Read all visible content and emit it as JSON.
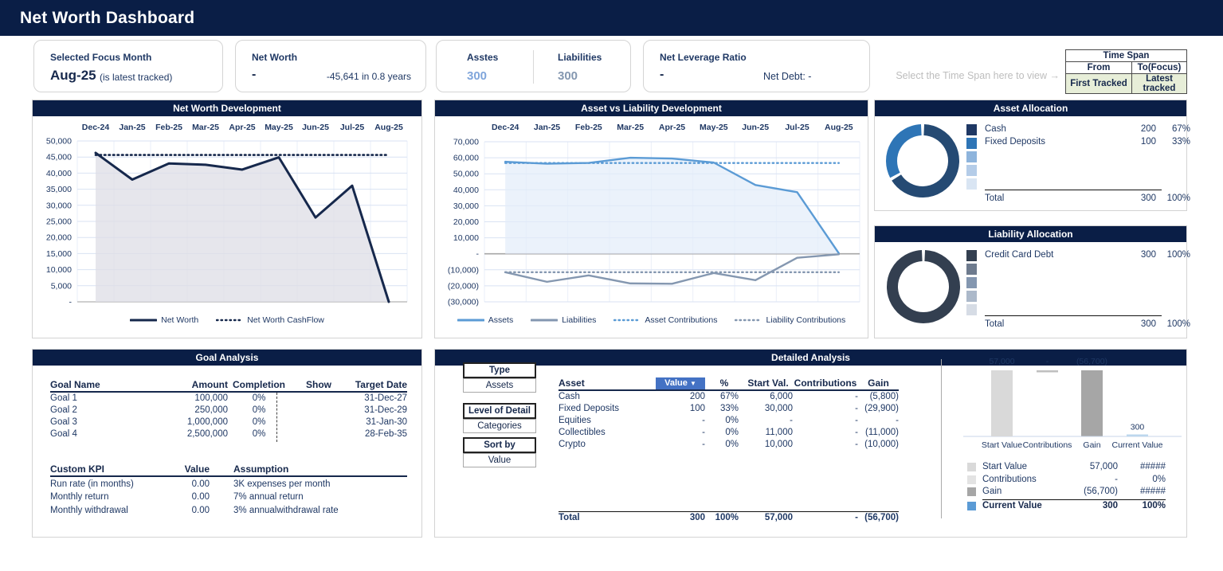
{
  "header": {
    "title": "Net Worth Dashboard"
  },
  "colors": {
    "navy": "#0A1E46",
    "text_navy": "#1F3864",
    "line_navy": "#16284C",
    "assets_blue": "#5B9BD5",
    "liability_gray": "#8497B0",
    "accent_light_blue": "#7FA5DB",
    "value_header_blue": "#4472C4",
    "green_cell": "#E7EED8",
    "grid": "#D9E2F3"
  },
  "cards": {
    "focus_month": {
      "label": "Selected Focus Month",
      "value": "Aug-25",
      "note": "(is latest tracked)"
    },
    "net_worth": {
      "label": "Net Worth",
      "value": "-",
      "detail": "-45,641 in 0.8 years"
    },
    "assets": {
      "label": "Asstes",
      "value": "300"
    },
    "liabilities": {
      "label": "Liabilities",
      "value": "300"
    },
    "leverage": {
      "label": "Net Leverage Ratio",
      "value": "-",
      "detail": "Net Debt: -"
    },
    "timespan_hint": "Select the Time Span here to view →",
    "timespan": {
      "title": "Time Span",
      "from_label": "From",
      "to_label": "To(Focus)",
      "from_value": "First Tracked",
      "to_value": "Latest tracked"
    }
  },
  "chart_data": [
    {
      "id": "net_worth_development",
      "type": "line",
      "title": "Net Worth Development",
      "x": [
        "Dec-24",
        "Jan-25",
        "Feb-25",
        "Mar-25",
        "Apr-25",
        "May-25",
        "Jun-25",
        "Jul-25",
        "Aug-25"
      ],
      "series": [
        {
          "name": "Net Worth",
          "style": "solid",
          "color": "#16284C",
          "width": 3,
          "values": [
            46300,
            38000,
            43000,
            42600,
            41100,
            44900,
            26200,
            36100,
            0
          ],
          "area": true,
          "area_fill": "rgba(222,222,230,0.75)"
        },
        {
          "name": "Net Worth CashFlow",
          "style": "dotted",
          "color": "#16284C",
          "width": 2.6,
          "values": [
            45641,
            45641,
            45641,
            45641,
            45641,
            45641,
            45641,
            45641,
            45641
          ]
        }
      ],
      "ylim": [
        0,
        50000
      ],
      "yticks": [
        "50,000",
        "45,000",
        "40,000",
        "35,000",
        "30,000",
        "25,000",
        "20,000",
        "15,000",
        "10,000",
        "5,000",
        "-"
      ],
      "legend_position": "bottom",
      "grid": true
    },
    {
      "id": "asset_vs_liability_development",
      "type": "line",
      "title": "Asset vs Liability Development",
      "x": [
        "Dec-24",
        "Jan-25",
        "Feb-25",
        "Mar-25",
        "Apr-25",
        "May-25",
        "Jun-25",
        "Jul-25",
        "Aug-25"
      ],
      "series": [
        {
          "name": "Assets",
          "style": "solid",
          "color": "#5B9BD5",
          "width": 2.4,
          "values": [
            57500,
            56300,
            56800,
            60000,
            59500,
            57000,
            43000,
            38500,
            300
          ],
          "area": true,
          "area_fill": "rgba(226,237,249,0.7)"
        },
        {
          "name": "Liabilities",
          "style": "solid",
          "color": "#8497B0",
          "width": 2.4,
          "values": [
            -11500,
            -17500,
            -13500,
            -18500,
            -18700,
            -12000,
            -16500,
            -2500,
            -300
          ]
        },
        {
          "name": "Asset Contributions",
          "style": "dotted",
          "color": "#5B9BD5",
          "width": 2.4,
          "values": [
            56700,
            56700,
            56700,
            56700,
            56700,
            56700,
            56700,
            56700,
            56700
          ]
        },
        {
          "name": "Liability Contributions",
          "style": "dotted",
          "color": "#8497B0",
          "width": 2.4,
          "values": [
            -11500,
            -11500,
            -11500,
            -11500,
            -11500,
            -11500,
            -11500,
            -11500,
            -11500
          ]
        }
      ],
      "ylim": [
        -30000,
        70000
      ],
      "yticks": [
        "70,000",
        "60,000",
        "50,000",
        "40,000",
        "30,000",
        "20,000",
        "10,000",
        "-",
        "(10,000)",
        "(20,000)",
        "(30,000)"
      ],
      "legend_position": "bottom",
      "grid": true,
      "zero_line": true
    },
    {
      "id": "asset_allocation_donut",
      "type": "pie",
      "title": "Asset Allocation",
      "labels": [
        "Cash",
        "Fixed Deposits"
      ],
      "values": [
        200,
        100
      ],
      "colors": [
        "#254A73",
        "#2E75B6"
      ]
    },
    {
      "id": "liability_allocation_donut",
      "type": "pie",
      "title": "Liability Allocation",
      "labels": [
        "Credit Card Debt"
      ],
      "values": [
        300
      ],
      "colors": [
        "#333F50"
      ]
    },
    {
      "id": "gain_waterfall",
      "type": "bar",
      "title": "",
      "categories": [
        "Start Value",
        "Contributions",
        "Gain",
        "Current Value"
      ],
      "values": [
        57000,
        0,
        -56700,
        300
      ],
      "labels": [
        "57,000",
        "-",
        "(56,700)",
        "300"
      ],
      "colors": [
        "#D9D9D9",
        "#BFBFBF",
        "#A6A6A6",
        "#BDD7EE"
      ],
      "ylim": [
        0,
        57000
      ]
    }
  ],
  "asset_allocation": {
    "title": "Asset Allocation",
    "chip_colors": [
      "#1F3864",
      "#2E75B6",
      "#8EB4DC",
      "#B4CCE8",
      "#D9E5F3"
    ],
    "rows": [
      {
        "label": "Cash",
        "value": "200",
        "pct": "67%"
      },
      {
        "label": "Fixed Deposits",
        "value": "100",
        "pct": "33%"
      }
    ],
    "total": {
      "label": "Total",
      "value": "300",
      "pct": "100%"
    }
  },
  "liability_allocation": {
    "title": "Liability Allocation",
    "chip_colors": [
      "#333F50",
      "#6E7B8E",
      "#8497B0",
      "#ACB9CA",
      "#D6DCE5"
    ],
    "rows": [
      {
        "label": "Credit Card Debt",
        "value": "300",
        "pct": "100%"
      }
    ],
    "total": {
      "label": "Total",
      "value": "300",
      "pct": "100%"
    }
  },
  "goal_analysis": {
    "title": "Goal Analysis",
    "columns": [
      "Goal Name",
      "Amount",
      "Completion",
      "Show",
      "Target Date"
    ],
    "rows": [
      {
        "name": "Goal 1",
        "amount": "100,000",
        "completion": "0%",
        "show": "",
        "target": "31-Dec-27"
      },
      {
        "name": "Goal 2",
        "amount": "250,000",
        "completion": "0%",
        "show": "",
        "target": "31-Dec-29"
      },
      {
        "name": "Goal 3",
        "amount": "1,000,000",
        "completion": "0%",
        "show": "",
        "target": "31-Jan-30"
      },
      {
        "name": "Goal 4",
        "amount": "2,500,000",
        "completion": "0%",
        "show": "",
        "target": "28-Feb-35"
      }
    ],
    "kpi": {
      "columns": [
        "Custom KPI",
        "Value",
        "Assumption"
      ],
      "rows": [
        {
          "name": "Run rate (in months)",
          "value": "0.00",
          "assumption": "3K expenses per month"
        },
        {
          "name": "Monthly return",
          "value": "0.00",
          "assumption": "7% annual return"
        },
        {
          "name": "Monthly withdrawal",
          "value": "0.00",
          "assumption": "3% annualwithdrawal rate"
        }
      ]
    }
  },
  "detailed_analysis": {
    "title": "Detailed Analysis",
    "controls": [
      {
        "header": "Type",
        "value": "Assets"
      },
      {
        "header": "Level of Detail",
        "value": "Categories"
      },
      {
        "header": "Sort by",
        "value": "Value"
      }
    ],
    "table": {
      "columns": [
        "Asset",
        "Value",
        "%",
        "Start Val.",
        "Contributions",
        "Gain"
      ],
      "sort_indicator": "▼",
      "rows": [
        [
          "Cash",
          "200",
          "67%",
          "6,000",
          "-",
          "(5,800)"
        ],
        [
          "Fixed Deposits",
          "100",
          "33%",
          "30,000",
          "-",
          "(29,900)"
        ],
        [
          "Equities",
          "-",
          "0%",
          "-",
          "-",
          "-"
        ],
        [
          "Collectibles",
          "-",
          "0%",
          "11,000",
          "-",
          "(11,000)"
        ],
        [
          "Crypto",
          "-",
          "0%",
          "10,000",
          "-",
          "(10,000)"
        ]
      ],
      "total": [
        "Total",
        "300",
        "100%",
        "57,000",
        "-",
        "(56,700)"
      ]
    },
    "summary": [
      {
        "label": "Start Value",
        "value": "57,000",
        "pct": "#####",
        "chip": "#D9D9D9",
        "bold": false
      },
      {
        "label": "Contributions",
        "value": "-",
        "pct": "0%",
        "chip": "#E3E3E3",
        "bold": false
      },
      {
        "label": "Gain",
        "value": "(56,700)",
        "pct": "#####",
        "chip": "#A6A6A6",
        "bold": false
      },
      {
        "label": "Current Value",
        "value": "300",
        "pct": "100%",
        "chip": "#5B9BD5",
        "bold": true
      }
    ]
  }
}
